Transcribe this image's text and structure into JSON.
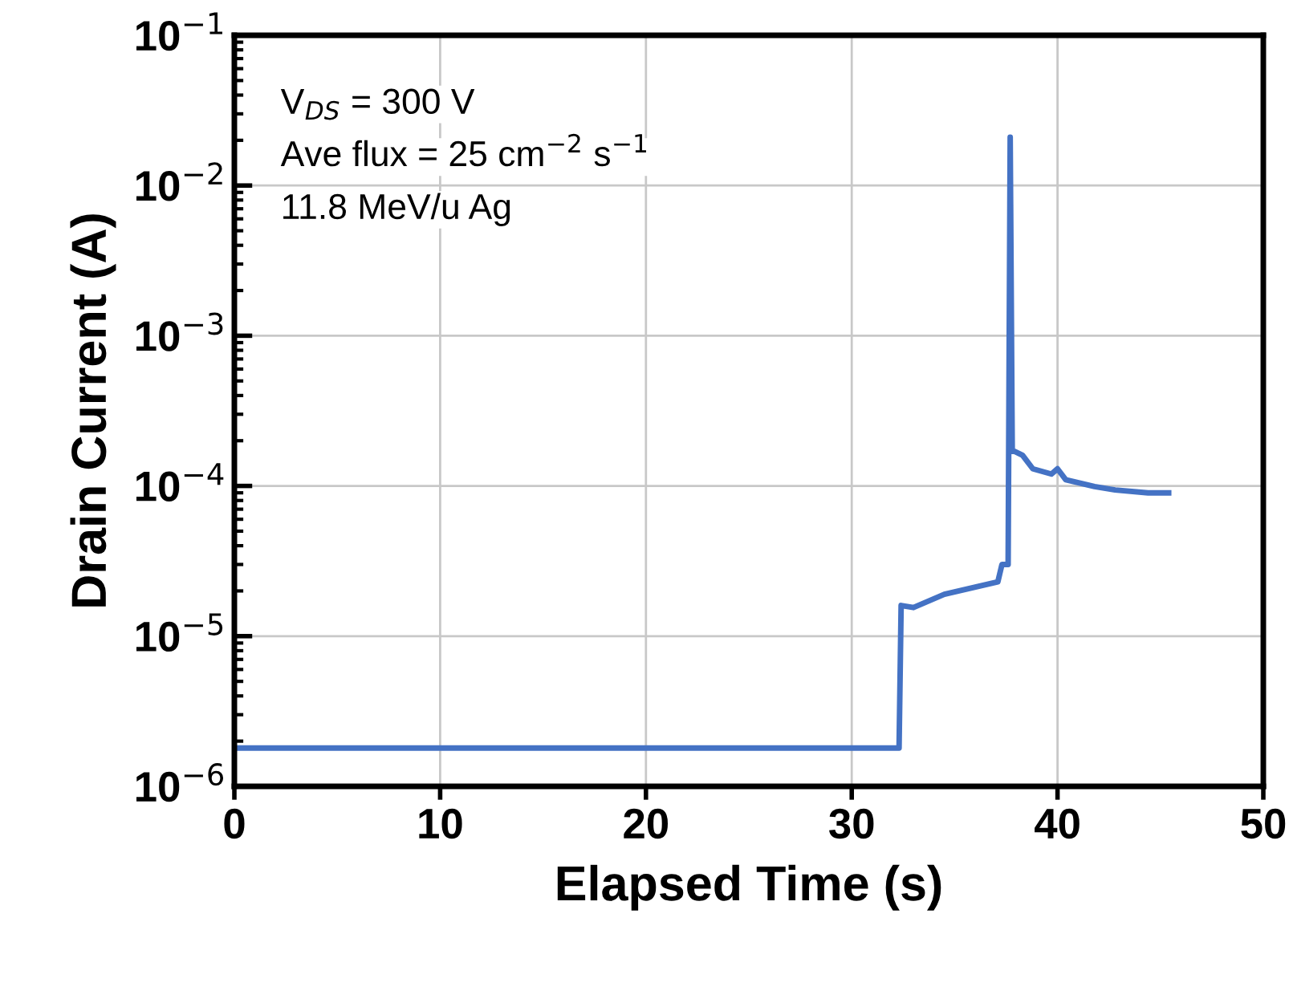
{
  "chart_data": {
    "type": "line",
    "xlabel": "Elapsed Time (s)",
    "ylabel": "Drain Current (A)",
    "log": "y",
    "grid": true,
    "xlim": [
      0,
      50
    ],
    "xticks": [
      0,
      10,
      20,
      30,
      40,
      50
    ],
    "ylim": [
      1e-06,
      0.1
    ],
    "yticks": [
      {
        "value": 1e-06,
        "label": "10$^{−6}$"
      },
      {
        "value": 1e-05,
        "label": "10$^{−5}$"
      },
      {
        "value": 0.0001,
        "label": "10$^{−4}$"
      },
      {
        "value": 0.001,
        "label": "10$^{−3}$"
      },
      {
        "value": 0.01,
        "label": "10$^{−2}$"
      },
      {
        "value": 0.1,
        "label": "10$^{−1}$"
      }
    ],
    "marker": "none",
    "line_style": "solid",
    "series": [
      {
        "color": "#4472c4",
        "x": [
          0,
          10,
          20,
          30,
          32.3,
          32.4,
          33.0,
          34.5,
          37.1,
          37.3,
          37.6,
          37.7,
          37.8,
          37.9,
          38.3,
          38.8,
          39.7,
          40.0,
          40.4,
          41.8,
          42.8,
          44.4,
          45.4
        ],
        "values": [
          1.8e-06,
          1.8e-06,
          1.8e-06,
          1.8e-06,
          1.8e-06,
          1.6e-05,
          1.55e-05,
          1.9e-05,
          2.3e-05,
          3e-05,
          3e-05,
          0.021,
          0.00017,
          0.00017,
          0.00016,
          0.00013,
          0.00012,
          0.00013,
          0.00011,
          9.9e-05,
          9.4e-05,
          9e-05,
          9e-05
        ]
      }
    ],
    "annotations": [
      "V$_{DS}$ = 300 V",
      "Ave flux = 25 cm$^{−2}$ s$^{−1}$",
      "11.8 MeV/u Ag"
    ]
  }
}
